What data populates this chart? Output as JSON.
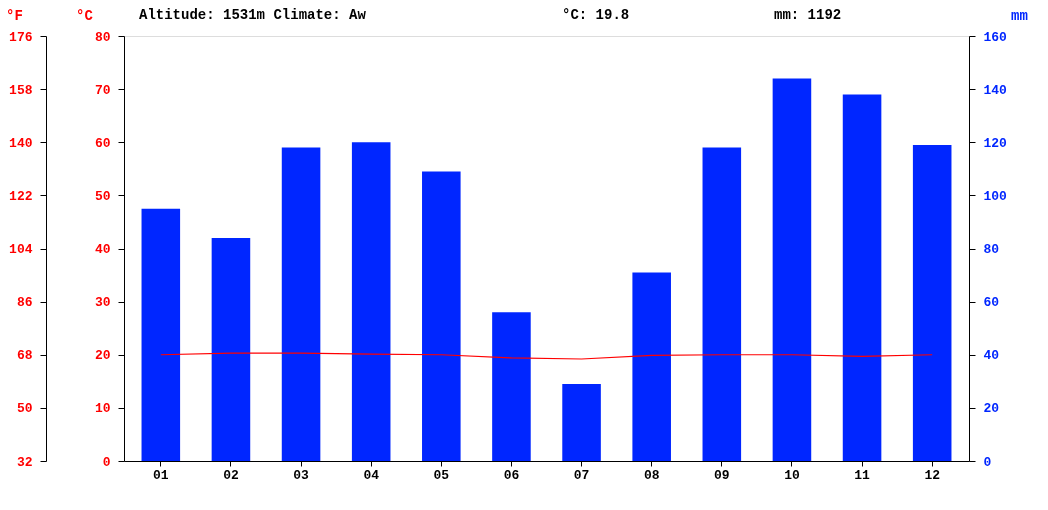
{
  "chart_data": {
    "type": "bar",
    "annotations": [
      "Altitude: 1531m Climate: Aw",
      "°C: 19.8",
      "mm: 1192"
    ],
    "ylabel": "°C",
    "y2label": "mm",
    "y3label": "°F",
    "categories": [
      "01",
      "02",
      "03",
      "04",
      "05",
      "06",
      "07",
      "08",
      "09",
      "10",
      "11",
      "12"
    ],
    "series": [
      {
        "axis": "y2",
        "color": "#0026ff",
        "values": [
          95,
          84,
          118,
          120,
          109,
          56,
          29,
          71,
          118,
          144,
          138,
          119
        ]
      },
      {
        "type": "line",
        "axis": "y",
        "color": "#ff0000",
        "values": [
          20.0,
          20.3,
          20.3,
          20.1,
          20.0,
          19.4,
          19.2,
          19.9,
          20.0,
          20.0,
          19.7,
          20.0
        ]
      }
    ],
    "ylim": [
      0,
      80
    ],
    "yticks": [
      0,
      10,
      20,
      30,
      40,
      50,
      60,
      70,
      80
    ],
    "y2lim": [
      0,
      160
    ],
    "y2ticks": [
      0,
      20,
      40,
      60,
      80,
      100,
      120,
      140,
      160
    ],
    "y3lim": [
      32,
      176
    ],
    "y3ticks": [
      32,
      50,
      68,
      86,
      104,
      122,
      140,
      158,
      176
    ]
  }
}
